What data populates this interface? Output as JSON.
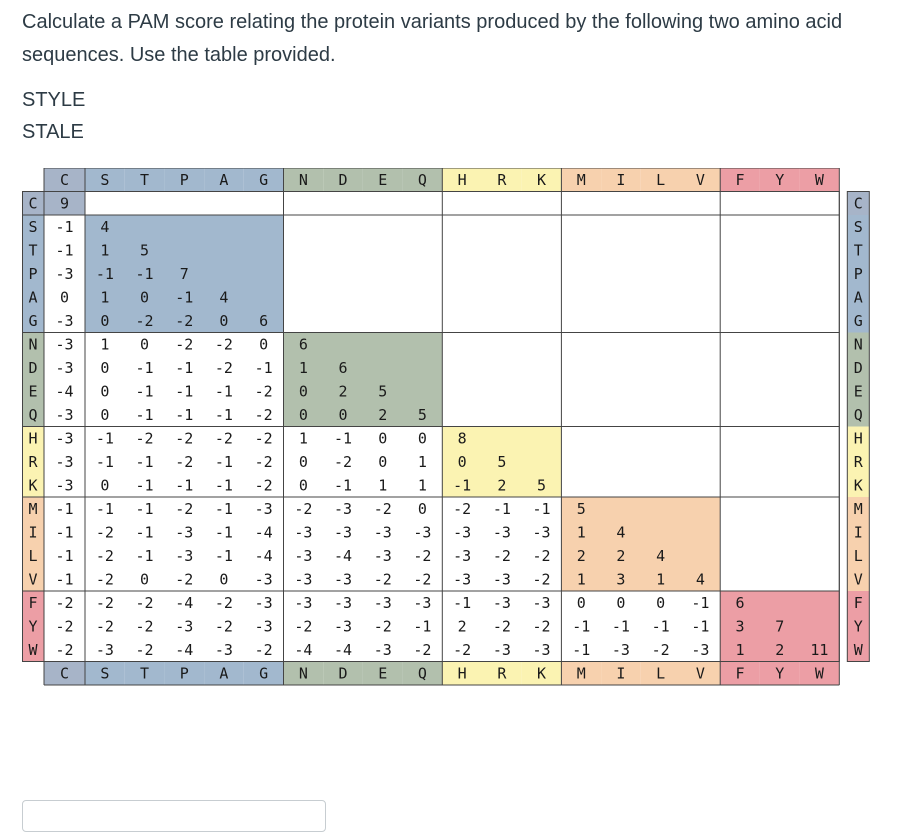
{
  "question": {
    "text": "Calculate a PAM score relating the protein variants produced by the following two amino acid sequences.  Use the table provided."
  },
  "sequences": [
    "STYLE",
    "STALE"
  ],
  "pam_table": {
    "amino_acids": [
      "C",
      "S",
      "T",
      "P",
      "A",
      "G",
      "N",
      "D",
      "E",
      "Q",
      "H",
      "R",
      "K",
      "M",
      "I",
      "L",
      "V",
      "F",
      "Y",
      "W"
    ],
    "rows": [
      [
        9
      ],
      [
        -1,
        4
      ],
      [
        -1,
        1,
        5
      ],
      [
        -3,
        -1,
        -1,
        7
      ],
      [
        0,
        1,
        0,
        -1,
        4
      ],
      [
        -3,
        0,
        -2,
        -2,
        0,
        6
      ],
      [
        -3,
        1,
        0,
        -2,
        -2,
        0,
        6
      ],
      [
        -3,
        0,
        -1,
        -1,
        -2,
        -1,
        1,
        6
      ],
      [
        -4,
        0,
        -1,
        -1,
        -1,
        -2,
        0,
        2,
        5
      ],
      [
        -3,
        0,
        -1,
        -1,
        -1,
        -2,
        0,
        0,
        2,
        5
      ],
      [
        -3,
        -1,
        -2,
        -2,
        -2,
        -2,
        1,
        -1,
        0,
        0,
        8
      ],
      [
        -3,
        -1,
        -1,
        -2,
        -1,
        -2,
        0,
        -2,
        0,
        1,
        0,
        5
      ],
      [
        -3,
        0,
        -1,
        -1,
        -1,
        -2,
        0,
        -1,
        1,
        1,
        -1,
        2,
        5
      ],
      [
        -1,
        -1,
        -1,
        -2,
        -1,
        -3,
        -2,
        -3,
        -2,
        0,
        -2,
        -1,
        -1,
        5
      ],
      [
        -1,
        -2,
        -1,
        -3,
        -1,
        -4,
        -3,
        -3,
        -3,
        -3,
        -3,
        -3,
        -3,
        1,
        4
      ],
      [
        -1,
        -2,
        -1,
        -3,
        -1,
        -4,
        -3,
        -4,
        -3,
        -2,
        -3,
        -2,
        -2,
        2,
        2,
        4
      ],
      [
        -1,
        -2,
        0,
        -2,
        0,
        -3,
        -3,
        -3,
        -2,
        -2,
        -3,
        -3,
        -2,
        1,
        3,
        1,
        4
      ],
      [
        -2,
        -2,
        -2,
        -4,
        -2,
        -3,
        -3,
        -3,
        -3,
        -3,
        -1,
        -3,
        -3,
        0,
        0,
        0,
        -1,
        6
      ],
      [
        -2,
        -2,
        -2,
        -3,
        -2,
        -3,
        -2,
        -3,
        -2,
        -1,
        2,
        -2,
        -2,
        -1,
        -1,
        -1,
        -1,
        3,
        7
      ],
      [
        -2,
        -3,
        -2,
        -4,
        -3,
        -2,
        -4,
        -4,
        -3,
        -2,
        -2,
        -3,
        -3,
        -1,
        -3,
        -2,
        -3,
        1,
        2,
        11
      ]
    ],
    "groups": [
      {
        "start": 0,
        "end": 0,
        "color": "#a7b4c8"
      },
      {
        "start": 1,
        "end": 5,
        "color": "#a2b8ce"
      },
      {
        "start": 6,
        "end": 9,
        "color": "#b2c0ad"
      },
      {
        "start": 10,
        "end": 12,
        "color": "#fbf3b2"
      },
      {
        "start": 13,
        "end": 16,
        "color": "#f7d1ae"
      },
      {
        "start": 17,
        "end": 19,
        "color": "#ec9ea5"
      }
    ]
  },
  "answer": {
    "value": ""
  }
}
